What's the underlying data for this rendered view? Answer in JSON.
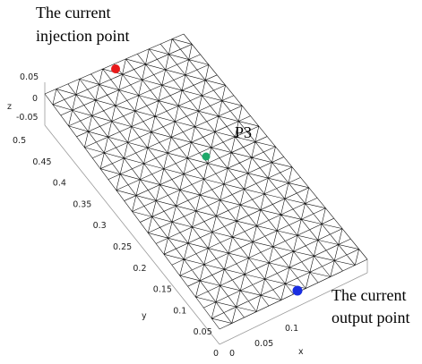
{
  "annotations": {
    "injection": [
      "The current",
      "injection point"
    ],
    "p3": "P3",
    "output": [
      "The current",
      "output point"
    ]
  },
  "axes": {
    "x_label": "x",
    "y_label": "y",
    "z_label": "z",
    "x_ticks": [
      "0",
      "0.05",
      "0.1"
    ],
    "y_ticks": [
      "0.5",
      "0.45",
      "0.4",
      "0.35",
      "0.3",
      "0.25",
      "0.2",
      "0.15",
      "0.1",
      "0.05",
      "0"
    ],
    "z_ticks": [
      "0.05",
      "0",
      "-0.05"
    ]
  }
}
